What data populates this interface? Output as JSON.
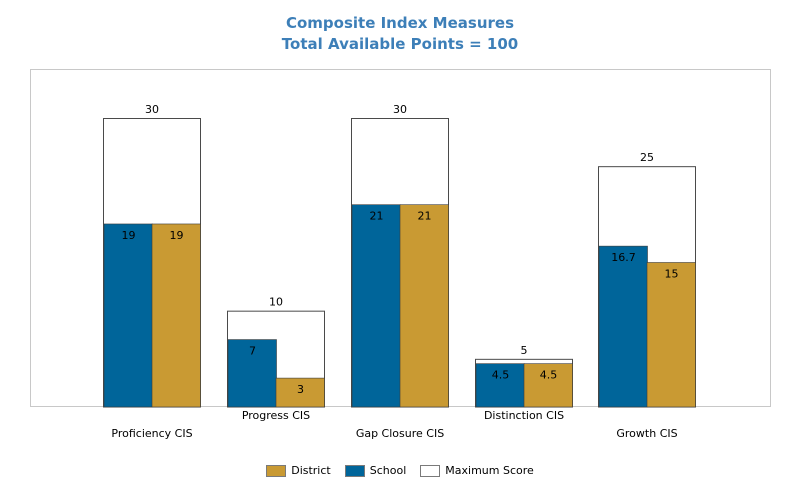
{
  "chart_data": {
    "type": "bar",
    "title": "Composite Index Measures",
    "subtitle": "Total Available Points = 100",
    "categories": [
      "Proficiency CIS",
      "Progress CIS",
      "Gap Closure CIS",
      "Distinction CIS",
      "Growth CIS"
    ],
    "maximum": {
      "name": "Maximum Score",
      "values": [
        30,
        10,
        30,
        5,
        25
      ],
      "labels": [
        "30",
        "10",
        "30",
        "5",
        "25"
      ]
    },
    "series": [
      {
        "name": "School",
        "values": [
          19,
          7,
          21,
          4.5,
          16.7
        ],
        "labels": [
          "19",
          "7",
          "21",
          "4.5",
          "16.7"
        ]
      },
      {
        "name": "District",
        "values": [
          19,
          3,
          21,
          4.5,
          15
        ],
        "labels": [
          "19",
          "3",
          "21",
          "4.5",
          "15"
        ]
      }
    ],
    "ylim": [
      0,
      30
    ],
    "grid": false,
    "legend_position": "bottom-center",
    "legend": [
      "District",
      "School",
      "Maximum Score"
    ]
  },
  "colors": {
    "school": "#00659a",
    "district": "#c99a33",
    "maximum_fill": "#ffffff",
    "maximum_stroke": "#4a4a4a",
    "title": "#3d7fb8"
  }
}
